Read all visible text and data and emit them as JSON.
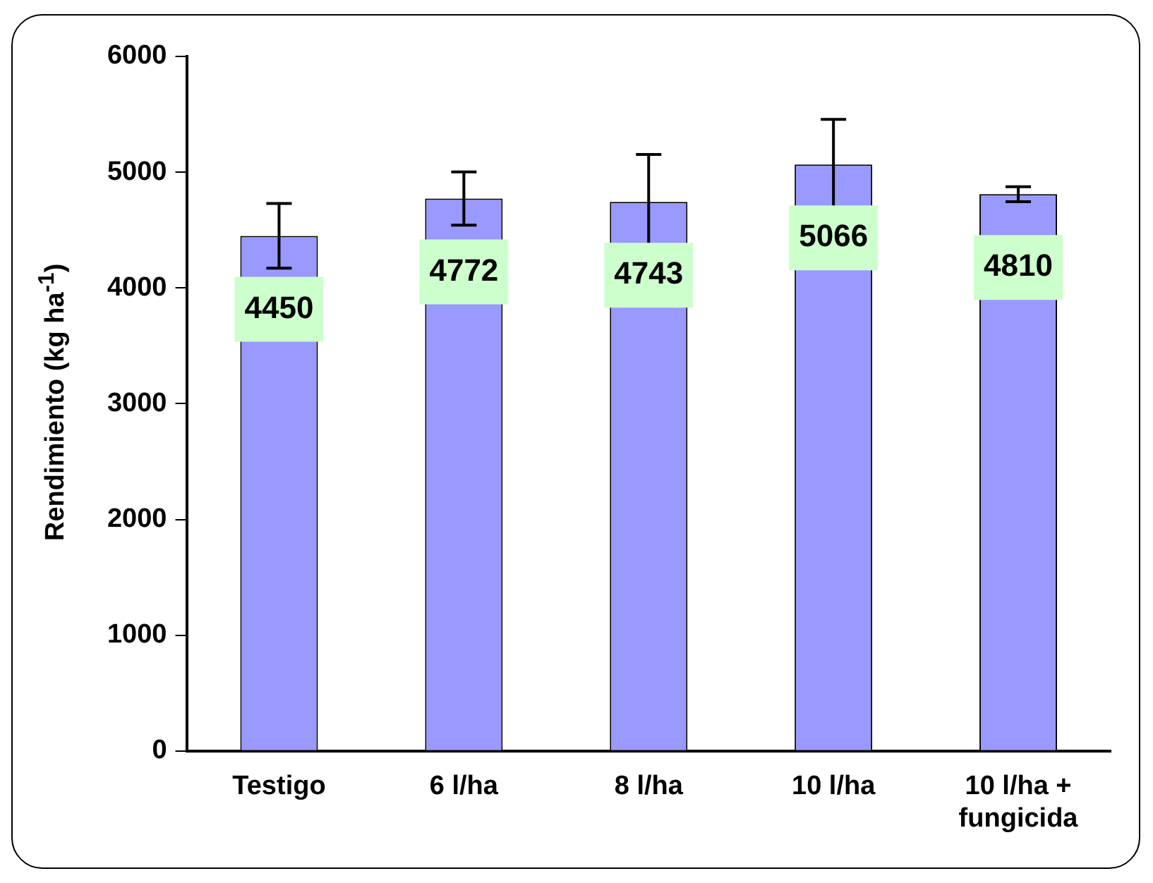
{
  "chart_data": {
    "type": "bar",
    "ylabel": "Rendimiento (kg ha$^{-1}$)",
    "categories": [
      "Testigo",
      "6 l/ha",
      "8 l/ha",
      "10 l/ha",
      "10 l/ha + fungicida"
    ],
    "values": [
      4450,
      4772,
      4743,
      5066,
      4810
    ],
    "errors": [
      280,
      230,
      410,
      390,
      65
    ],
    "color": "#9999ff",
    "ylim": [
      0,
      6000
    ],
    "yticks": [
      0,
      1000,
      2000,
      3000,
      4000,
      5000,
      6000
    ],
    "grid": false,
    "legend": false,
    "data_labels": true
  }
}
